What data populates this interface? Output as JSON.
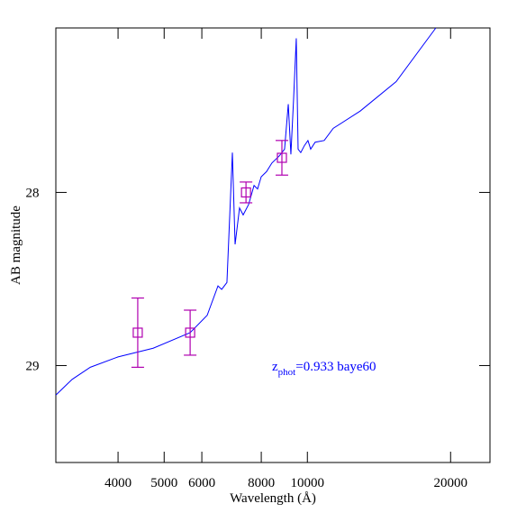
{
  "chart_data": {
    "type": "sed",
    "xlabel": "Wavelength (Å)",
    "ylabel": "AB magnitude",
    "x_scale": "log",
    "xlim": [
      2960,
      24200
    ],
    "ylim": [
      29.56,
      27.05
    ],
    "xticks": [
      4000,
      5000,
      6000,
      8000,
      10000,
      20000
    ],
    "yticks": [
      28,
      29
    ],
    "annotation": {
      "base": "z",
      "sub": "phot",
      "rest": "=0.933  baye60",
      "color": "#0000ff"
    },
    "series": [
      {
        "type": "line",
        "color": "#0000ff",
        "x": [
          2961,
          3203,
          3497,
          4000,
          4741,
          5670,
          6157,
          6488,
          6605,
          6775,
          6956,
          7048,
          7201,
          7329,
          7524,
          7725,
          7858,
          7997,
          8205,
          8423,
          8724,
          8955,
          9117,
          9233,
          9355,
          9477,
          9561,
          9685,
          9855,
          10027,
          10161,
          10383,
          10848,
          11333,
          12913,
          15368,
          18620
        ],
        "values": [
          29.17,
          29.08,
          29.01,
          28.95,
          28.9,
          28.81,
          28.71,
          28.54,
          28.56,
          28.52,
          27.77,
          28.3,
          28.09,
          28.13,
          28.07,
          27.96,
          27.98,
          27.91,
          27.88,
          27.83,
          27.79,
          27.75,
          27.49,
          27.78,
          27.46,
          27.11,
          27.75,
          27.77,
          27.73,
          27.7,
          27.75,
          27.71,
          27.7,
          27.63,
          27.53,
          27.36,
          27.05
        ]
      },
      {
        "type": "errorbar",
        "color": "#b000b0",
        "x": [
          4400,
          5670,
          7430,
          8840
        ],
        "values": [
          28.81,
          28.81,
          28.0,
          27.8
        ],
        "errors": [
          0.2,
          0.13,
          0.06,
          0.1
        ]
      }
    ]
  }
}
